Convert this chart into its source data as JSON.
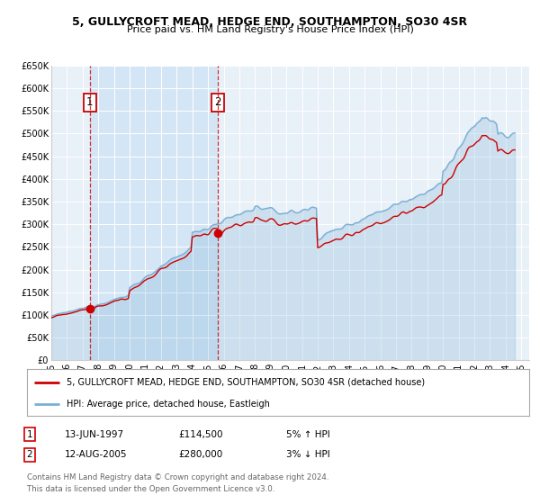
{
  "title": "5, GULLYCROFT MEAD, HEDGE END, SOUTHAMPTON, SO30 4SR",
  "subtitle": "Price paid vs. HM Land Registry's House Price Index (HPI)",
  "background_color": "#ffffff",
  "plot_bg_color": "#e8f0f8",
  "grid_color": "#ffffff",
  "xmin": 1995.0,
  "xmax": 2025.5,
  "ymin": 0,
  "ymax": 650000,
  "yticks": [
    0,
    50000,
    100000,
    150000,
    200000,
    250000,
    300000,
    350000,
    400000,
    450000,
    500000,
    550000,
    600000,
    650000
  ],
  "ytick_labels": [
    "£0",
    "£50K",
    "£100K",
    "£150K",
    "£200K",
    "£250K",
    "£300K",
    "£350K",
    "£400K",
    "£450K",
    "£500K",
    "£550K",
    "£600K",
    "£650K"
  ],
  "xtick_labels": [
    "95",
    "96",
    "97",
    "98",
    "99",
    "00",
    "01",
    "02",
    "03",
    "04",
    "05",
    "06",
    "07",
    "08",
    "09",
    "10",
    "11",
    "12",
    "13",
    "14",
    "15",
    "16",
    "17",
    "18",
    "19",
    "20",
    "21",
    "22",
    "23",
    "24",
    "25"
  ],
  "xticks": [
    1995,
    1996,
    1997,
    1998,
    1999,
    2000,
    2001,
    2002,
    2003,
    2004,
    2005,
    2006,
    2007,
    2008,
    2009,
    2010,
    2011,
    2012,
    2013,
    2014,
    2015,
    2016,
    2017,
    2018,
    2019,
    2020,
    2021,
    2022,
    2023,
    2024,
    2025
  ],
  "sale1_x": 1997.45,
  "sale1_y": 114500,
  "sale1_label": "1",
  "sale1_date": "13-JUN-1997",
  "sale1_price": "£114,500",
  "sale1_hpi": "5% ↑ HPI",
  "sale2_x": 2005.62,
  "sale2_y": 280000,
  "sale2_label": "2",
  "sale2_date": "12-AUG-2005",
  "sale2_price": "£280,000",
  "sale2_hpi": "3% ↓ HPI",
  "property_color": "#cc0000",
  "hpi_color": "#7bafd4",
  "shade_color": "#d0e4f5",
  "legend_property": "5, GULLYCROFT MEAD, HEDGE END, SOUTHAMPTON, SO30 4SR (detached house)",
  "legend_hpi": "HPI: Average price, detached house, Eastleigh",
  "footer1": "Contains HM Land Registry data © Crown copyright and database right 2024.",
  "footer2": "This data is licensed under the Open Government Licence v3.0."
}
